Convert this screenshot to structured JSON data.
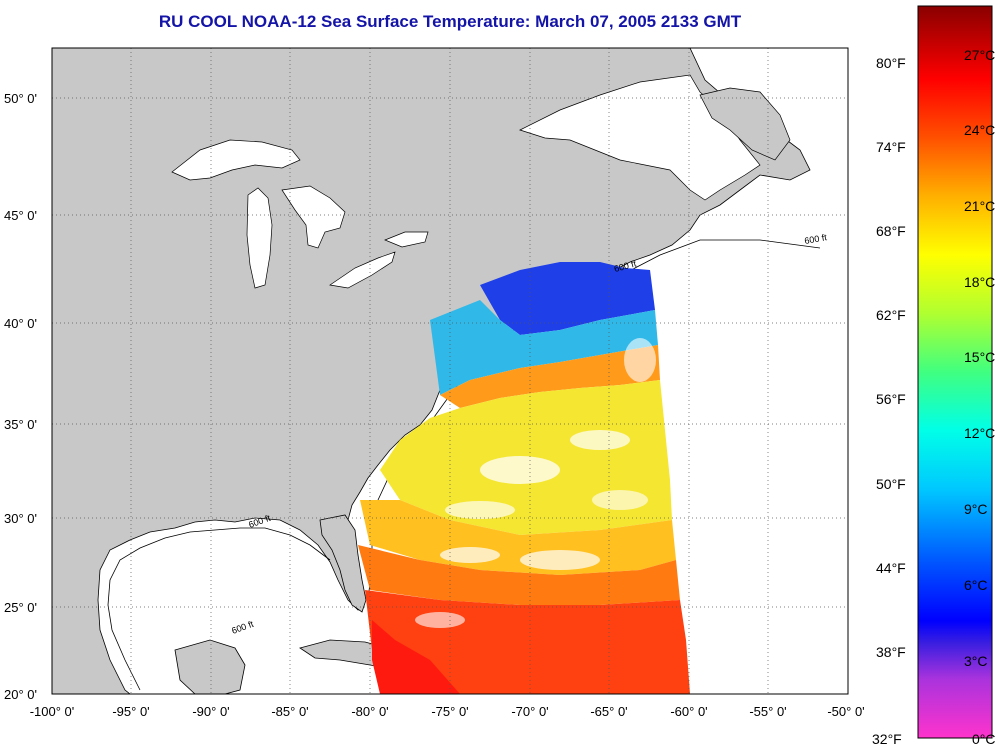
{
  "title": "RU COOL  NOAA-12  Sea Surface Temperature:  March 07, 2005 2133 GMT",
  "map": {
    "lon_labels": [
      "-100° 0'",
      "-95° 0'",
      "-90° 0'",
      "-85° 0'",
      "-80° 0'",
      "-75° 0'",
      "-70° 0'",
      "-65° 0'",
      "-60° 0'",
      "-55° 0'",
      "-50° 0'"
    ],
    "lat_labels": [
      "50° 0'",
      "45° 0'",
      "40° 0'",
      "35° 0'",
      "30° 0'",
      "25° 0'",
      "20° 0'"
    ],
    "contour_label": "600 ft",
    "colors": {
      "land": "#c8c8c8",
      "water": "#ffffff",
      "grid": "#555555"
    }
  },
  "colorbar": {
    "fahrenheit_labels": [
      "80°F",
      "74°F",
      "68°F",
      "62°F",
      "56°F",
      "50°F",
      "44°F",
      "38°F",
      "32°F"
    ],
    "celsius_labels": [
      "27°C",
      "24°C",
      "21°C",
      "18°C",
      "15°C",
      "12°C",
      "9°C",
      "6°C",
      "3°C",
      "0°C"
    ]
  }
}
